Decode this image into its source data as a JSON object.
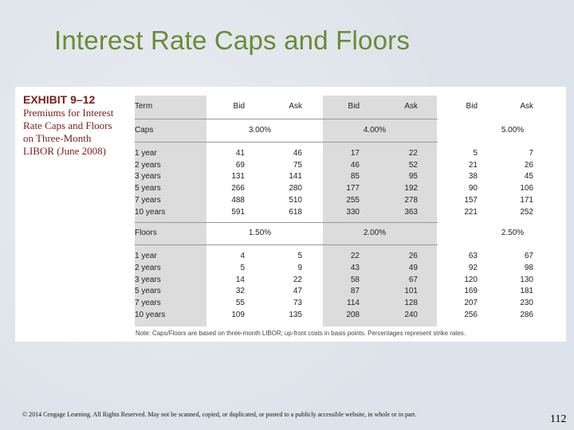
{
  "slide": {
    "title": "Interest Rate Caps and Floors",
    "footer": "© 2014 Cengage Learning. All Rights Reserved. May not be scanned, copied, or duplicated, or posted to a publicly accessible website, in whole or in part.",
    "page_number": "112"
  },
  "exhibit": {
    "number": "EXHIBIT 9–12",
    "caption": "Premiums for Interest\nRate Caps and Floors\non Three-Month\nLIBOR (June 2008)",
    "header": {
      "term": "Term",
      "columns": [
        "Bid",
        "Ask",
        "Bid",
        "Ask",
        "Bid",
        "Ask"
      ]
    },
    "caps": {
      "label": "Caps",
      "strikes": [
        "3.00%",
        "4.00%",
        "5.00%"
      ],
      "rows": [
        {
          "term": "1 year",
          "values": [
            "41",
            "46",
            "17",
            "22",
            "5",
            "7"
          ]
        },
        {
          "term": "2 years",
          "values": [
            "69",
            "75",
            "46",
            "52",
            "21",
            "26"
          ]
        },
        {
          "term": "3 years",
          "values": [
            "131",
            "141",
            "85",
            "95",
            "38",
            "45"
          ]
        },
        {
          "term": "5 years",
          "values": [
            "266",
            "280",
            "177",
            "192",
            "90",
            "106"
          ]
        },
        {
          "term": "7 years",
          "values": [
            "488",
            "510",
            "255",
            "278",
            "157",
            "171"
          ]
        },
        {
          "term": "10 years",
          "values": [
            "591",
            "618",
            "330",
            "363",
            "221",
            "252"
          ]
        }
      ]
    },
    "floors": {
      "label": "Floors",
      "strikes": [
        "1.50%",
        "2.00%",
        "2.50%"
      ],
      "rows": [
        {
          "term": "1 year",
          "values": [
            "4",
            "5",
            "22",
            "26",
            "63",
            "67"
          ]
        },
        {
          "term": "2 years",
          "values": [
            "5",
            "9",
            "43",
            "49",
            "92",
            "98"
          ]
        },
        {
          "term": "3 years",
          "values": [
            "14",
            "22",
            "58",
            "67",
            "120",
            "130"
          ]
        },
        {
          "term": "5 years",
          "values": [
            "32",
            "47",
            "87",
            "101",
            "169",
            "181"
          ]
        },
        {
          "term": "7 years",
          "values": [
            "55",
            "73",
            "114",
            "128",
            "207",
            "230"
          ]
        },
        {
          "term": "10 years",
          "values": [
            "109",
            "135",
            "208",
            "240",
            "256",
            "286"
          ]
        }
      ]
    },
    "note": "Note: Caps/Floors are based on three-month LIBOR; up-front costs in basis points. Percentages represent strike rates."
  },
  "colors": {
    "title": "#6b8a37",
    "caption": "#7b1c1c",
    "band_shade": "#dcdcdc"
  }
}
